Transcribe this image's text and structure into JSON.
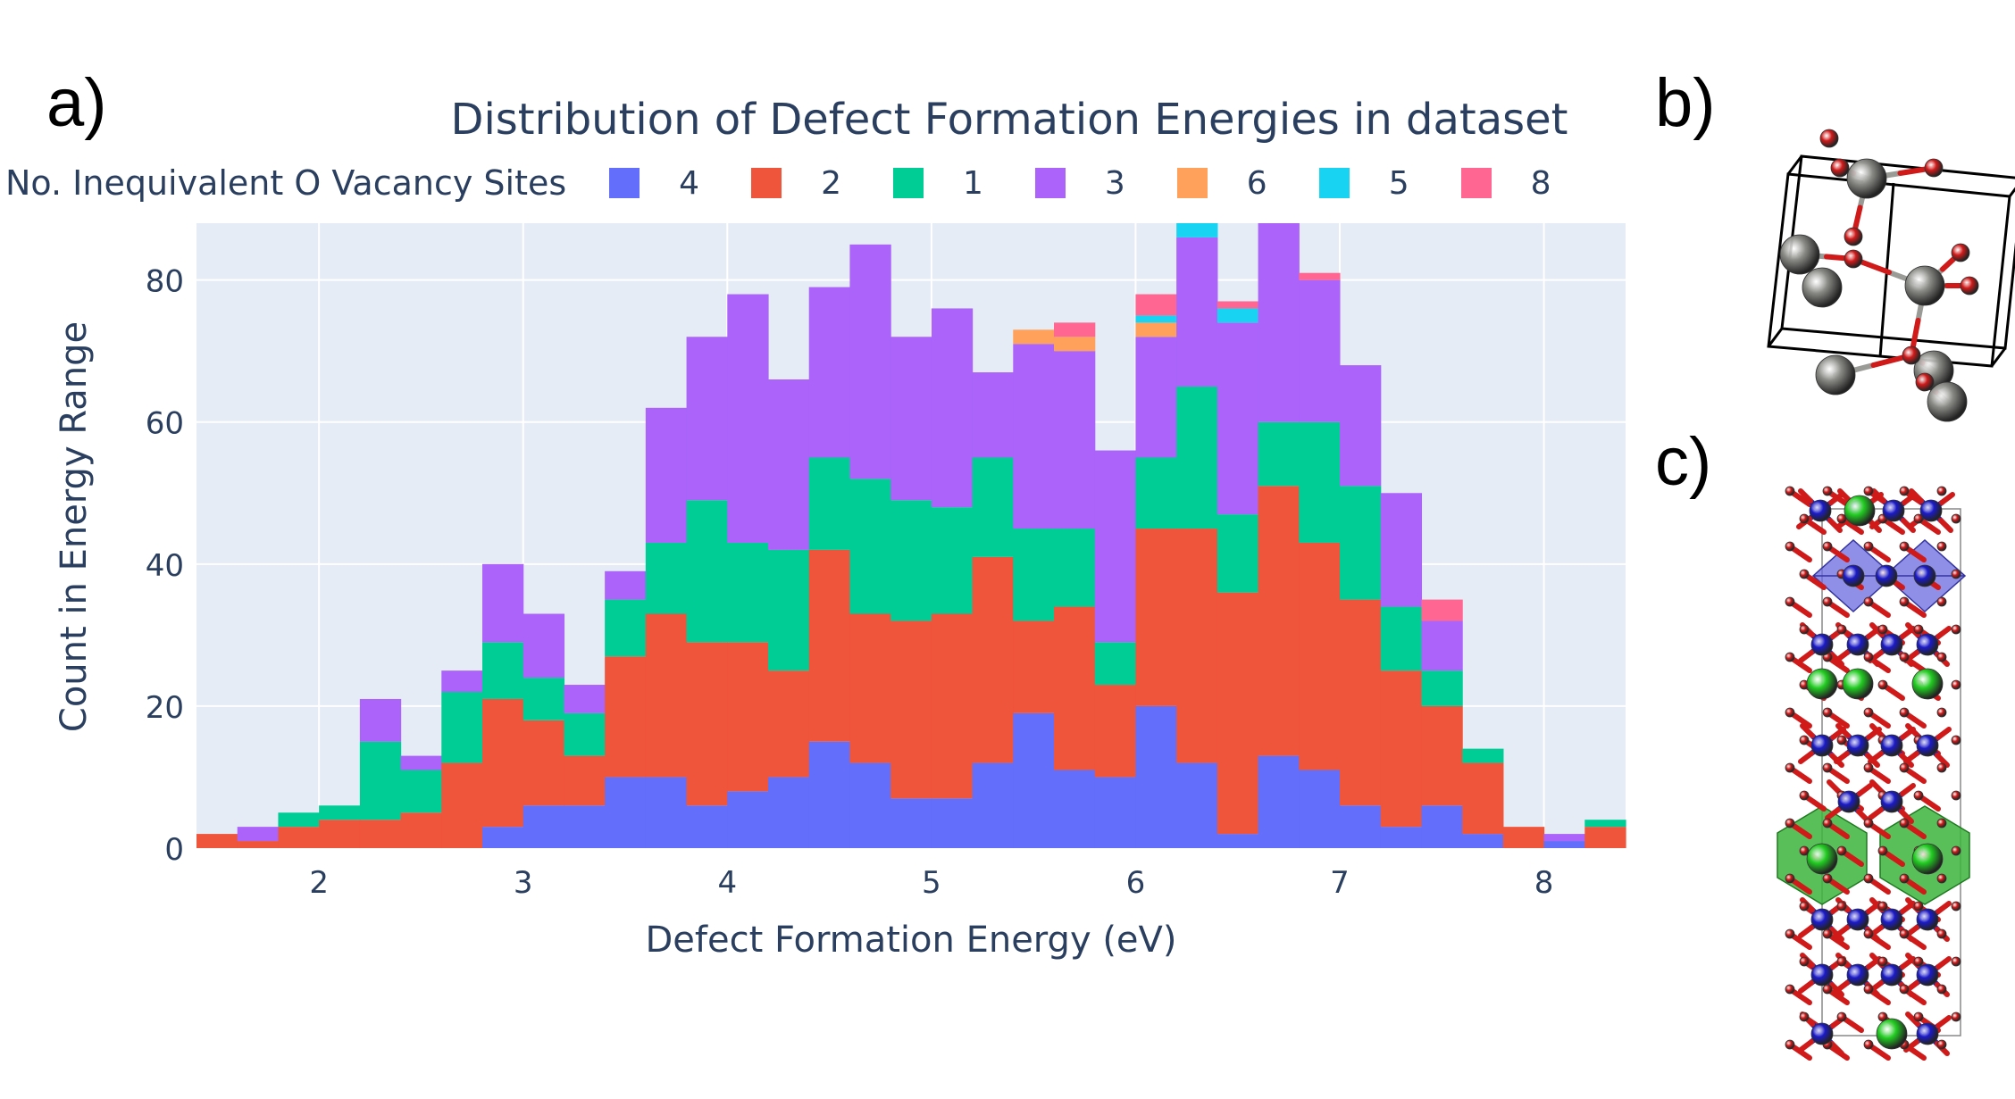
{
  "panel_labels": {
    "a": "a)",
    "b": "b)",
    "c": "c)"
  },
  "chart_data": {
    "type": "bar",
    "barmode": "stack",
    "title": "Distribution of Defect Formation Energies in dataset",
    "xlabel": "Defect Formation Energy (eV)",
    "ylabel": "Count in Energy Range",
    "legend_title": "No. Inequivalent O Vacancy Sites",
    "legend_position": "top",
    "xlim": [
      1.4,
      8.4
    ],
    "ylim": [
      0,
      88
    ],
    "xticks": [
      2,
      3,
      4,
      5,
      6,
      7,
      8
    ],
    "yticks": [
      0,
      20,
      40,
      60,
      80
    ],
    "bin_width": 0.2,
    "x": [
      1.5,
      1.7,
      1.9,
      2.1,
      2.3,
      2.5,
      2.7,
      2.9,
      3.1,
      3.3,
      3.5,
      3.7,
      3.9,
      4.1,
      4.3,
      4.5,
      4.7,
      4.9,
      5.1,
      5.3,
      5.5,
      5.7,
      5.9,
      6.1,
      6.3,
      6.5,
      6.7,
      6.9,
      7.1,
      7.3,
      7.5,
      7.7,
      7.9,
      8.1,
      8.3
    ],
    "series": [
      {
        "name": "4",
        "color": "#636efa",
        "values": [
          0,
          0,
          0,
          0,
          0,
          0,
          0,
          3,
          6,
          6,
          10,
          10,
          6,
          8,
          10,
          15,
          12,
          7,
          7,
          12,
          19,
          11,
          10,
          20,
          12,
          2,
          13,
          11,
          6,
          3,
          6,
          2,
          0,
          1,
          0
        ]
      },
      {
        "name": "2",
        "color": "#ef553b",
        "values": [
          2,
          1,
          3,
          4,
          4,
          5,
          12,
          18,
          12,
          7,
          17,
          23,
          23,
          21,
          15,
          27,
          21,
          25,
          26,
          29,
          13,
          23,
          13,
          25,
          33,
          34,
          38,
          32,
          29,
          22,
          14,
          10,
          3,
          0,
          3
        ]
      },
      {
        "name": "1",
        "color": "#00cc96",
        "values": [
          0,
          0,
          2,
          2,
          11,
          6,
          10,
          8,
          6,
          6,
          8,
          10,
          20,
          14,
          17,
          13,
          19,
          17,
          15,
          14,
          13,
          11,
          6,
          10,
          20,
          11,
          9,
          17,
          16,
          9,
          5,
          2,
          0,
          0,
          1
        ]
      },
      {
        "name": "3",
        "color": "#ab63fa",
        "values": [
          0,
          2,
          0,
          0,
          6,
          2,
          3,
          11,
          9,
          4,
          4,
          19,
          23,
          35,
          24,
          24,
          33,
          23,
          28,
          12,
          26,
          25,
          27,
          17,
          21,
          27,
          28,
          20,
          17,
          16,
          7,
          0,
          0,
          1,
          0
        ]
      },
      {
        "name": "6",
        "color": "#ffa15a",
        "values": [
          0,
          0,
          0,
          0,
          0,
          0,
          0,
          0,
          0,
          0,
          0,
          0,
          0,
          0,
          0,
          0,
          0,
          0,
          0,
          0,
          2,
          2,
          0,
          2,
          0,
          0,
          0,
          0,
          0,
          0,
          0,
          0,
          0,
          0,
          0
        ]
      },
      {
        "name": "5",
        "color": "#19d3f3",
        "values": [
          0,
          0,
          0,
          0,
          0,
          0,
          0,
          0,
          0,
          0,
          0,
          0,
          0,
          0,
          0,
          0,
          0,
          0,
          0,
          0,
          0,
          0,
          0,
          1,
          2,
          2,
          0,
          0,
          0,
          0,
          0,
          0,
          0,
          0,
          0
        ]
      },
      {
        "name": "8",
        "color": "#ff6692",
        "values": [
          0,
          0,
          0,
          0,
          0,
          0,
          0,
          0,
          0,
          0,
          0,
          0,
          0,
          0,
          0,
          0,
          0,
          0,
          0,
          0,
          0,
          2,
          0,
          3,
          0,
          1,
          0,
          1,
          0,
          0,
          3,
          0,
          0,
          0,
          0
        ]
      }
    ]
  },
  "structure_colors": {
    "grey_atom": "#8a8a86",
    "red_atom": "#d01a1a",
    "blue_atom": "#1a1ac8",
    "green_atom": "#22cc22",
    "blue_polyhedron": "#6a6ae0",
    "green_polyhedron": "#3cb43c"
  }
}
